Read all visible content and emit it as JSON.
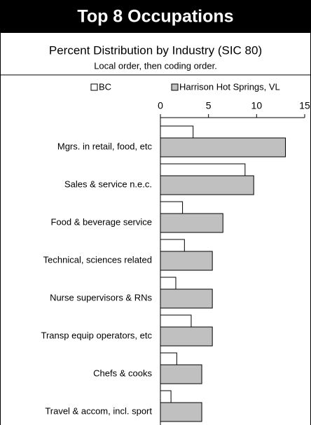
{
  "chart_data": {
    "type": "hbar",
    "title": "Top 8 Occupations",
    "subtitle": "Percent Distribution by Industry (SIC 80)",
    "note": "Local order, then coding order.",
    "categories": [
      "Mgrs. in retail, food, etc",
      "Sales & service  n.e.c.",
      "Food & beverage service",
      "Technical, sciences related",
      "Nurse supervisors & RNs",
      "Transp equip operators, etc",
      "Chefs & cooks",
      "Travel & accom, incl. sport"
    ],
    "series": [
      {
        "name": "BC",
        "color": "#ffffff",
        "values": [
          3.4,
          8.8,
          2.3,
          2.5,
          1.6,
          3.2,
          1.7,
          1.1
        ]
      },
      {
        "name": "Harrison Hot Springs, VL",
        "color": "#c0c0c0",
        "values": [
          13.0,
          9.7,
          6.5,
          5.4,
          5.4,
          5.4,
          4.3,
          4.3
        ]
      }
    ],
    "xlim": [
      0,
      15
    ],
    "xticks": [
      0,
      5,
      10,
      15
    ],
    "legend": "top"
  }
}
